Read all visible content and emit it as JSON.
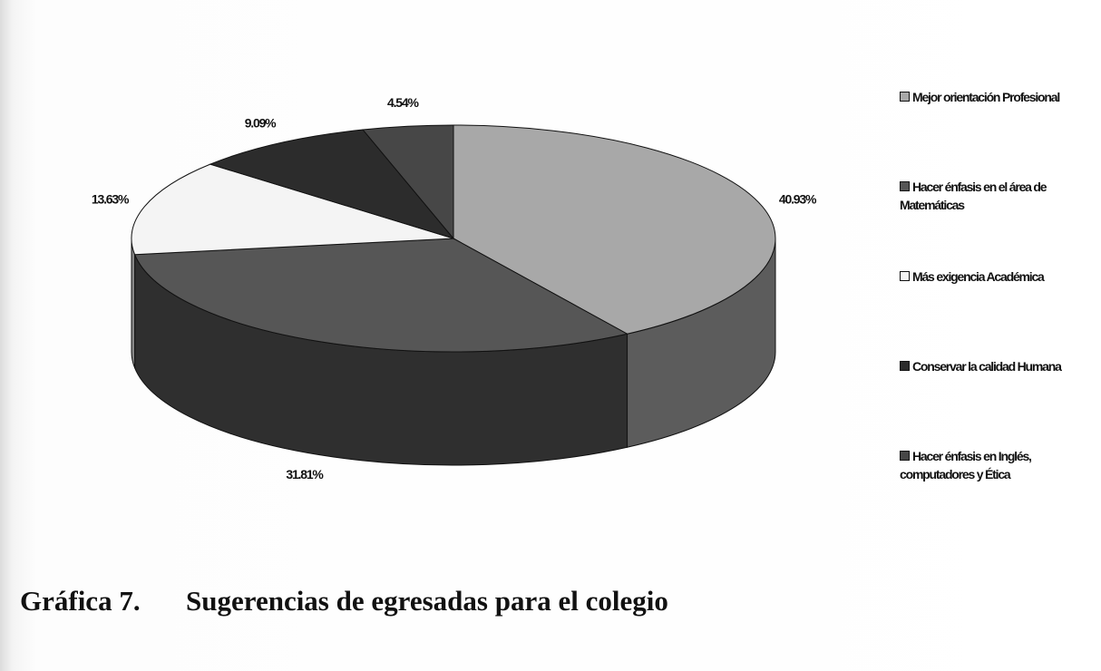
{
  "chart_data": {
    "type": "pie",
    "figure_label": "Gráfica 7.",
    "title": "Sugerencias de egresadas para el colegio",
    "categories": [
      "Mejor orientación Profesional",
      "Hacer énfasis en el área de Matemáticas",
      "Más exigencia Académica",
      "Conservar la calidad Humana",
      "Hacer énfasis en Inglés, computadores y Ética"
    ],
    "values": [
      40.93,
      31.81,
      13.63,
      9.09,
      4.54
    ],
    "value_labels": [
      "40.93%",
      "31.81%",
      "13.63%",
      "9.09%",
      "4.54%"
    ],
    "colors": [
      "#a8a8a8",
      "#565656",
      "#f4f4f4",
      "#2c2c2c",
      "#474747"
    ],
    "legend": "right"
  }
}
